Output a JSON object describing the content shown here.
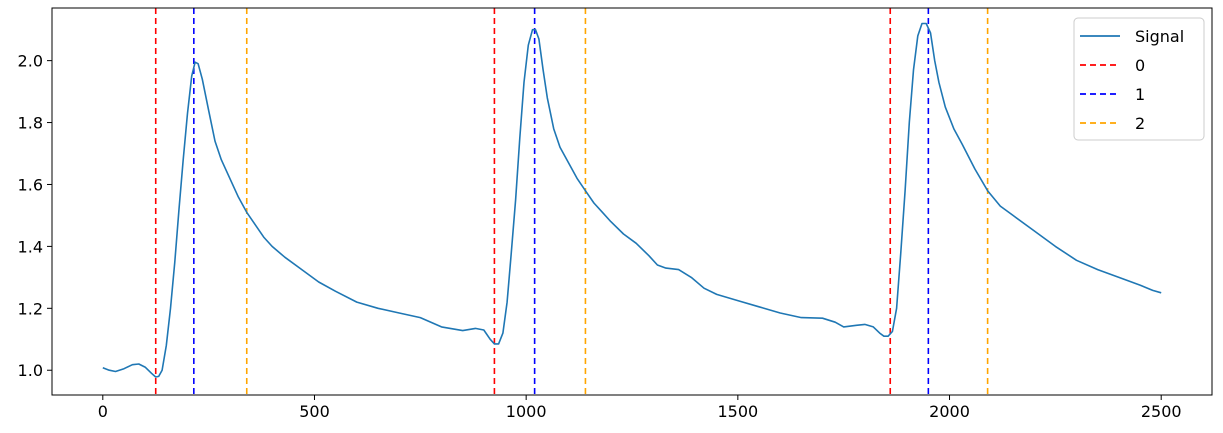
{
  "chart_data": {
    "type": "line",
    "title": "",
    "xlabel": "",
    "ylabel": "",
    "xlim": [
      -120,
      2620
    ],
    "ylim": [
      0.92,
      2.17
    ],
    "grid": false,
    "legend_position": "top-right",
    "x_ticks": [
      0,
      500,
      1000,
      1500,
      2000,
      2500
    ],
    "x_tick_labels": [
      "0",
      "500",
      "1000",
      "1500",
      "2000",
      "2500"
    ],
    "y_ticks": [
      1.0,
      1.2,
      1.4,
      1.6,
      1.8,
      2.0
    ],
    "y_tick_labels": [
      "1.0",
      "1.2",
      "1.4",
      "1.6",
      "1.8",
      "2.0"
    ],
    "series": [
      {
        "name": "Signal",
        "color": "#1f77b4",
        "style": "solid",
        "points": [
          [
            0,
            1.008
          ],
          [
            15,
            1.0
          ],
          [
            30,
            0.996
          ],
          [
            50,
            1.005
          ],
          [
            70,
            1.018
          ],
          [
            85,
            1.02
          ],
          [
            100,
            1.01
          ],
          [
            115,
            0.99
          ],
          [
            125,
            0.978
          ],
          [
            132,
            0.98
          ],
          [
            140,
            1.0
          ],
          [
            150,
            1.08
          ],
          [
            160,
            1.2
          ],
          [
            170,
            1.35
          ],
          [
            180,
            1.52
          ],
          [
            190,
            1.68
          ],
          [
            200,
            1.83
          ],
          [
            210,
            1.95
          ],
          [
            218,
            1.995
          ],
          [
            225,
            1.99
          ],
          [
            235,
            1.94
          ],
          [
            250,
            1.84
          ],
          [
            265,
            1.74
          ],
          [
            280,
            1.68
          ],
          [
            300,
            1.62
          ],
          [
            320,
            1.56
          ],
          [
            340,
            1.51
          ],
          [
            360,
            1.47
          ],
          [
            380,
            1.43
          ],
          [
            400,
            1.4
          ],
          [
            430,
            1.365
          ],
          [
            470,
            1.325
          ],
          [
            510,
            1.285
          ],
          [
            550,
            1.255
          ],
          [
            600,
            1.22
          ],
          [
            650,
            1.2
          ],
          [
            700,
            1.185
          ],
          [
            750,
            1.17
          ],
          [
            800,
            1.14
          ],
          [
            850,
            1.128
          ],
          [
            880,
            1.135
          ],
          [
            900,
            1.13
          ],
          [
            915,
            1.1
          ],
          [
            925,
            1.085
          ],
          [
            935,
            1.085
          ],
          [
            945,
            1.12
          ],
          [
            955,
            1.22
          ],
          [
            965,
            1.38
          ],
          [
            975,
            1.55
          ],
          [
            985,
            1.75
          ],
          [
            995,
            1.93
          ],
          [
            1005,
            2.05
          ],
          [
            1015,
            2.1
          ],
          [
            1022,
            2.1
          ],
          [
            1030,
            2.07
          ],
          [
            1040,
            1.97
          ],
          [
            1050,
            1.88
          ],
          [
            1065,
            1.78
          ],
          [
            1080,
            1.72
          ],
          [
            1100,
            1.67
          ],
          [
            1120,
            1.62
          ],
          [
            1140,
            1.58
          ],
          [
            1160,
            1.54
          ],
          [
            1180,
            1.51
          ],
          [
            1200,
            1.48
          ],
          [
            1230,
            1.44
          ],
          [
            1260,
            1.41
          ],
          [
            1290,
            1.37
          ],
          [
            1310,
            1.34
          ],
          [
            1330,
            1.33
          ],
          [
            1360,
            1.325
          ],
          [
            1390,
            1.3
          ],
          [
            1420,
            1.265
          ],
          [
            1450,
            1.245
          ],
          [
            1500,
            1.225
          ],
          [
            1550,
            1.205
          ],
          [
            1600,
            1.185
          ],
          [
            1650,
            1.17
          ],
          [
            1700,
            1.168
          ],
          [
            1730,
            1.155
          ],
          [
            1750,
            1.14
          ],
          [
            1780,
            1.145
          ],
          [
            1800,
            1.148
          ],
          [
            1820,
            1.14
          ],
          [
            1835,
            1.12
          ],
          [
            1845,
            1.11
          ],
          [
            1855,
            1.11
          ],
          [
            1865,
            1.125
          ],
          [
            1875,
            1.2
          ],
          [
            1885,
            1.38
          ],
          [
            1895,
            1.58
          ],
          [
            1905,
            1.8
          ],
          [
            1915,
            1.97
          ],
          [
            1925,
            2.08
          ],
          [
            1935,
            2.12
          ],
          [
            1945,
            2.12
          ],
          [
            1955,
            2.09
          ],
          [
            1965,
            2.0
          ],
          [
            1975,
            1.93
          ],
          [
            1990,
            1.85
          ],
          [
            2010,
            1.78
          ],
          [
            2030,
            1.73
          ],
          [
            2060,
            1.65
          ],
          [
            2090,
            1.58
          ],
          [
            2120,
            1.53
          ],
          [
            2150,
            1.5
          ],
          [
            2200,
            1.45
          ],
          [
            2250,
            1.4
          ],
          [
            2300,
            1.355
          ],
          [
            2350,
            1.325
          ],
          [
            2400,
            1.3
          ],
          [
            2450,
            1.275
          ],
          [
            2480,
            1.258
          ],
          [
            2500,
            1.25
          ]
        ]
      },
      {
        "name": "0",
        "color": "#ff0000",
        "style": "dashed",
        "type": "vline",
        "x": [
          125,
          925,
          1860
        ]
      },
      {
        "name": "1",
        "color": "#0000ff",
        "style": "dashed",
        "type": "vline",
        "x": [
          215,
          1020,
          1950
        ]
      },
      {
        "name": "2",
        "color": "#ffa500",
        "style": "dashed",
        "type": "vline",
        "x": [
          340,
          1140,
          2090
        ]
      }
    ]
  }
}
